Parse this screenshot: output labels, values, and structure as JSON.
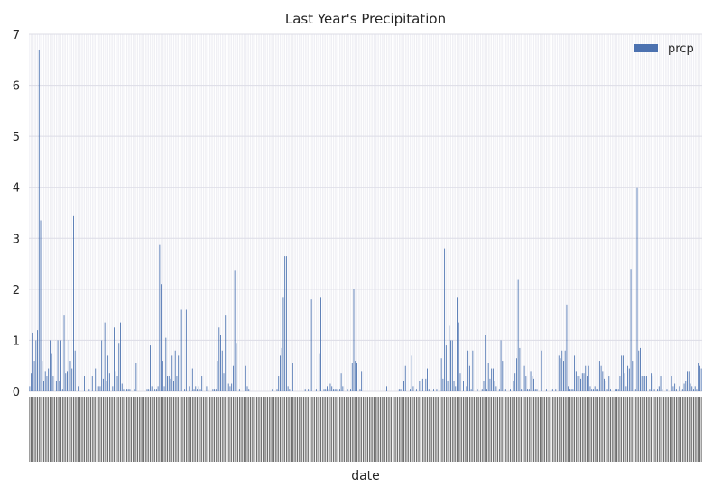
{
  "chart_data": {
    "type": "bar",
    "title": "Last Year's Precipitation",
    "xlabel": "date",
    "ylabel": "",
    "ylim": [
      0,
      7
    ],
    "yticks": [
      0,
      1,
      2,
      3,
      4,
      5,
      6,
      7
    ],
    "grid": true,
    "legend_position": "top-right",
    "series": [
      {
        "name": "prcp",
        "color": "#4c72b0",
        "values": [
          0.1,
          0.35,
          1.15,
          0.6,
          1.0,
          1.2,
          6.7,
          3.35,
          0.6,
          0.2,
          0.4,
          0.3,
          0.45,
          1.0,
          0.75,
          0.3,
          0.0,
          0.2,
          1.0,
          0.2,
          1.0,
          0.05,
          1.5,
          0.35,
          0.4,
          1.0,
          0.6,
          0.45,
          3.45,
          0.8,
          0.0,
          0.1,
          0.0,
          0.0,
          0.0,
          0.3,
          0.0,
          0.0,
          0.05,
          0.0,
          0.3,
          0.0,
          0.45,
          0.5,
          0.1,
          0.1,
          1.0,
          0.25,
          1.35,
          0.2,
          0.7,
          0.35,
          0.0,
          0.1,
          1.25,
          0.4,
          0.3,
          0.95,
          1.35,
          0.15,
          0.05,
          0.0,
          0.05,
          0.05,
          0.05,
          0.0,
          0.0,
          0.05,
          0.55,
          0.0,
          0.0,
          0.0,
          0.0,
          0.0,
          0.0,
          0.05,
          0.05,
          0.9,
          0.1,
          0.0,
          0.05,
          0.05,
          0.1,
          2.87,
          2.1,
          0.6,
          0.1,
          1.05,
          0.3,
          0.3,
          0.25,
          0.7,
          0.2,
          0.8,
          0.3,
          0.7,
          1.3,
          1.6,
          0.0,
          0.05,
          1.6,
          0.0,
          0.1,
          0.0,
          0.45,
          0.05,
          0.1,
          0.05,
          0.1,
          0.05,
          0.3,
          0.0,
          0.0,
          0.1,
          0.05,
          0.0,
          0.0,
          0.05,
          0.05,
          0.05,
          0.6,
          1.25,
          1.1,
          0.8,
          0.35,
          1.5,
          1.45,
          0.15,
          0.1,
          0.15,
          0.5,
          2.38,
          0.95,
          0.0,
          0.05,
          0.0,
          0.0,
          0.0,
          0.5,
          0.1,
          0.05,
          0.0,
          0.0,
          0.0,
          0.0,
          0.0,
          0.0,
          0.0,
          0.0,
          0.0,
          0.0,
          0.0,
          0.0,
          0.0,
          0.0,
          0.05,
          0.0,
          0.0,
          0.05,
          0.3,
          0.7,
          0.85,
          1.85,
          2.65,
          2.65,
          0.1,
          0.05,
          0.0,
          0.55,
          0.0,
          0.0,
          0.0,
          0.0,
          0.0,
          0.0,
          0.0,
          0.05,
          0.0,
          0.05,
          0.0,
          1.8,
          0.0,
          0.0,
          0.05,
          0.0,
          0.75,
          1.85,
          0.0,
          0.05,
          0.05,
          0.1,
          0.05,
          0.15,
          0.1,
          0.05,
          0.05,
          0.05,
          0.0,
          0.05,
          0.35,
          0.1,
          0.0,
          0.0,
          0.05,
          0.0,
          0.05,
          0.55,
          2.0,
          0.6,
          0.55,
          0.0,
          0.05,
          0.4,
          0.0,
          0.0,
          0.0,
          0.0,
          0.0,
          0.0,
          0.0,
          0.0,
          0.0,
          0.0,
          0.0,
          0.0,
          0.0,
          0.0,
          0.0,
          0.1,
          0.0,
          0.0,
          0.0,
          0.0,
          0.0,
          0.0,
          0.0,
          0.05,
          0.05,
          0.0,
          0.2,
          0.5,
          0.0,
          0.0,
          0.05,
          0.7,
          0.1,
          0.0,
          0.05,
          0.0,
          0.2,
          0.0,
          0.25,
          0.0,
          0.25,
          0.45,
          0.05,
          0.0,
          0.0,
          0.05,
          0.0,
          0.05,
          0.0,
          0.25,
          0.65,
          0.25,
          2.8,
          0.9,
          0.2,
          1.3,
          1.0,
          1.0,
          0.2,
          0.1,
          1.85,
          1.35,
          0.35,
          0.0,
          0.2,
          0.0,
          0.1,
          0.8,
          0.5,
          0.05,
          0.8,
          0.0,
          0.0,
          0.05,
          0.0,
          0.0,
          0.05,
          0.2,
          1.1,
          0.05,
          0.55,
          0.25,
          0.45,
          0.45,
          0.2,
          0.1,
          0.0,
          0.05,
          1.0,
          0.6,
          0.3,
          0.05,
          0.0,
          0.0,
          0.05,
          0.0,
          0.2,
          0.35,
          0.65,
          2.2,
          0.85,
          0.05,
          0.05,
          0.5,
          0.3,
          0.05,
          0.05,
          0.4,
          0.3,
          0.25,
          0.05,
          0.05,
          0.0,
          0.0,
          0.8,
          0.0,
          0.0,
          0.05,
          0.0,
          0.0,
          0.0,
          0.05,
          0.0,
          0.05,
          0.0,
          0.7,
          0.65,
          0.8,
          0.6,
          0.8,
          1.7,
          0.1,
          0.05,
          0.05,
          0.05,
          0.7,
          0.4,
          0.3,
          0.3,
          0.25,
          0.35,
          0.35,
          0.5,
          0.3,
          0.5,
          0.1,
          0.05,
          0.05,
          0.1,
          0.05,
          0.05,
          0.6,
          0.5,
          0.4,
          0.25,
          0.2,
          0.05,
          0.3,
          0.05,
          0.0,
          0.0,
          0.05,
          0.05,
          0.05,
          0.3,
          0.7,
          0.7,
          0.35,
          0.1,
          0.5,
          0.45,
          2.4,
          0.6,
          0.7,
          0.05,
          4.0,
          0.8,
          0.85,
          0.3,
          0.3,
          0.3,
          0.3,
          0.0,
          0.05,
          0.35,
          0.3,
          0.05,
          0.0,
          0.05,
          0.1,
          0.3,
          0.05,
          0.0,
          0.0,
          0.05,
          0.0,
          0.0,
          0.3,
          0.1,
          0.15,
          0.05,
          0.0,
          0.1,
          0.0,
          0.05,
          0.15,
          0.2,
          0.4,
          0.4,
          0.15,
          0.1,
          0.05,
          0.1,
          0.05,
          0.55,
          0.5,
          0.45
        ]
      }
    ]
  }
}
